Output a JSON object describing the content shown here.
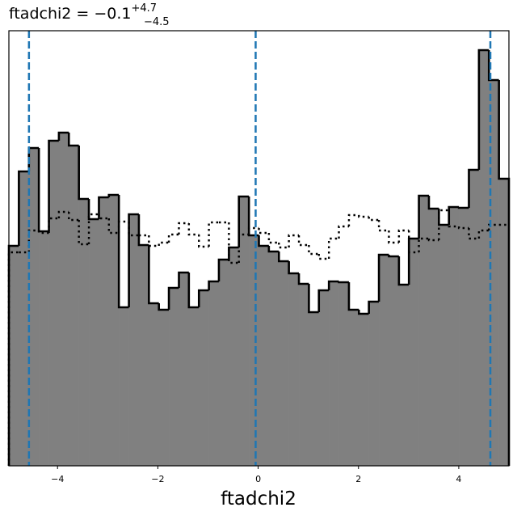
{
  "chart_data": {
    "type": "histogram",
    "title": {
      "text": "ftadchi2 = −0.1",
      "upper": "+4.7",
      "lower": "−4.5"
    },
    "x_label": "ftadchi2",
    "bins": [
      -4.97,
      -4.771,
      -4.571,
      -4.372,
      -4.172,
      -3.973,
      -3.774,
      -3.574,
      -3.375,
      -3.175,
      -2.976,
      -2.777,
      -2.577,
      -2.378,
      -2.178,
      -1.979,
      -1.78,
      -1.58,
      -1.381,
      -1.181,
      -0.982,
      -0.783,
      -0.583,
      -0.384,
      -0.184,
      0.015,
      0.214,
      0.414,
      0.613,
      0.813,
      1.012,
      1.211,
      1.411,
      1.61,
      1.81,
      2.009,
      2.208,
      2.408,
      2.607,
      2.807,
      3.006,
      3.205,
      3.405,
      3.604,
      3.804,
      4.003,
      4.202,
      4.402,
      4.601,
      4.801,
      5.0
    ],
    "series": [
      {
        "style": "filled",
        "color": "#808080",
        "edge_color": "#000000",
        "values": [
          272,
          364,
          393,
          290,
          402,
          412,
          396,
          330,
          305,
          332,
          335,
          196,
          311,
          273,
          201,
          193,
          220,
          239,
          196,
          217,
          228,
          255,
          270,
          333,
          285,
          272,
          265,
          253,
          238,
          225,
          190,
          217,
          228,
          227,
          193,
          188,
          203,
          261,
          259,
          224,
          281,
          334,
          318,
          298,
          320,
          319,
          366,
          514,
          477,
          355
        ]
      },
      {
        "style": "dotted",
        "color": "#000000",
        "values": [
          264,
          264,
          291,
          288,
          306,
          314,
          304,
          274,
          311,
          306,
          288,
          302,
          285,
          285,
          272,
          276,
          286,
          300,
          286,
          271,
          301,
          301,
          251,
          286,
          294,
          288,
          276,
          270,
          285,
          273,
          262,
          256,
          281,
          296,
          310,
          308,
          304,
          291,
          276,
          291,
          264,
          281,
          279,
          316,
          296,
          294,
          281,
          291,
          298,
          298
        ]
      }
    ],
    "quantile_lines": {
      "color": "#1f77b4",
      "values": [
        -4.57,
        -0.05,
        4.63
      ]
    },
    "xlim": [
      -4.97,
      5.0
    ],
    "ylim": [
      0,
      538
    ],
    "xticks": [
      {
        "value": -4,
        "label": "−4"
      },
      {
        "value": -2,
        "label": "−2"
      },
      0,
      2,
      4
    ]
  }
}
